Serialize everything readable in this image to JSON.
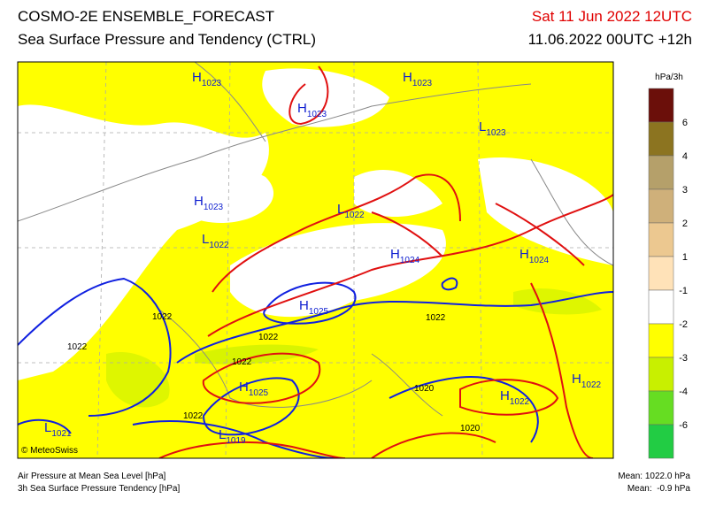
{
  "header": {
    "title": "COSMO-2E ENSEMBLE_FORECAST",
    "subtitle": "Sea Surface Pressure and Tendency (CTRL)",
    "valid_time": "Sat 11 Jun 2022 12UTC",
    "run": "11.06.2022 00UTC +12h"
  },
  "legend": {
    "unit": "hPa/3h",
    "labels": [
      6,
      4,
      3,
      2,
      1,
      -1,
      -2,
      -3,
      -4,
      -6
    ]
  },
  "map": {
    "centers": [
      {
        "letter": "H",
        "value": "1023"
      },
      {
        "letter": "H",
        "value": "1023"
      },
      {
        "letter": "H",
        "value": "1023"
      },
      {
        "letter": "L",
        "value": "1023"
      },
      {
        "letter": "H",
        "value": "1023"
      },
      {
        "letter": "L",
        "value": "1022"
      },
      {
        "letter": "L",
        "value": "1022"
      },
      {
        "letter": "H",
        "value": "1024"
      },
      {
        "letter": "H",
        "value": "1024"
      },
      {
        "letter": "H",
        "value": "1025"
      },
      {
        "letter": "H",
        "value": "1025"
      },
      {
        "letter": "H",
        "value": "1022"
      },
      {
        "letter": "H",
        "value": "1022"
      },
      {
        "letter": "L",
        "value": "1019"
      },
      {
        "letter": "L",
        "value": "1021"
      }
    ],
    "isobar_labels": [
      "1022",
      "1022",
      "1022",
      "1022",
      "1022",
      "1022",
      "1020",
      "1020"
    ],
    "credit": "© MeteoSwiss"
  },
  "footer": {
    "left": [
      "Air Pressure at Mean Sea Level [hPa]",
      "3h Sea Surface Pressure Tendency [hPa]"
    ],
    "right": [
      "Mean: 1022.0 hPa",
      "Mean:  -0.9 hPa"
    ]
  }
}
